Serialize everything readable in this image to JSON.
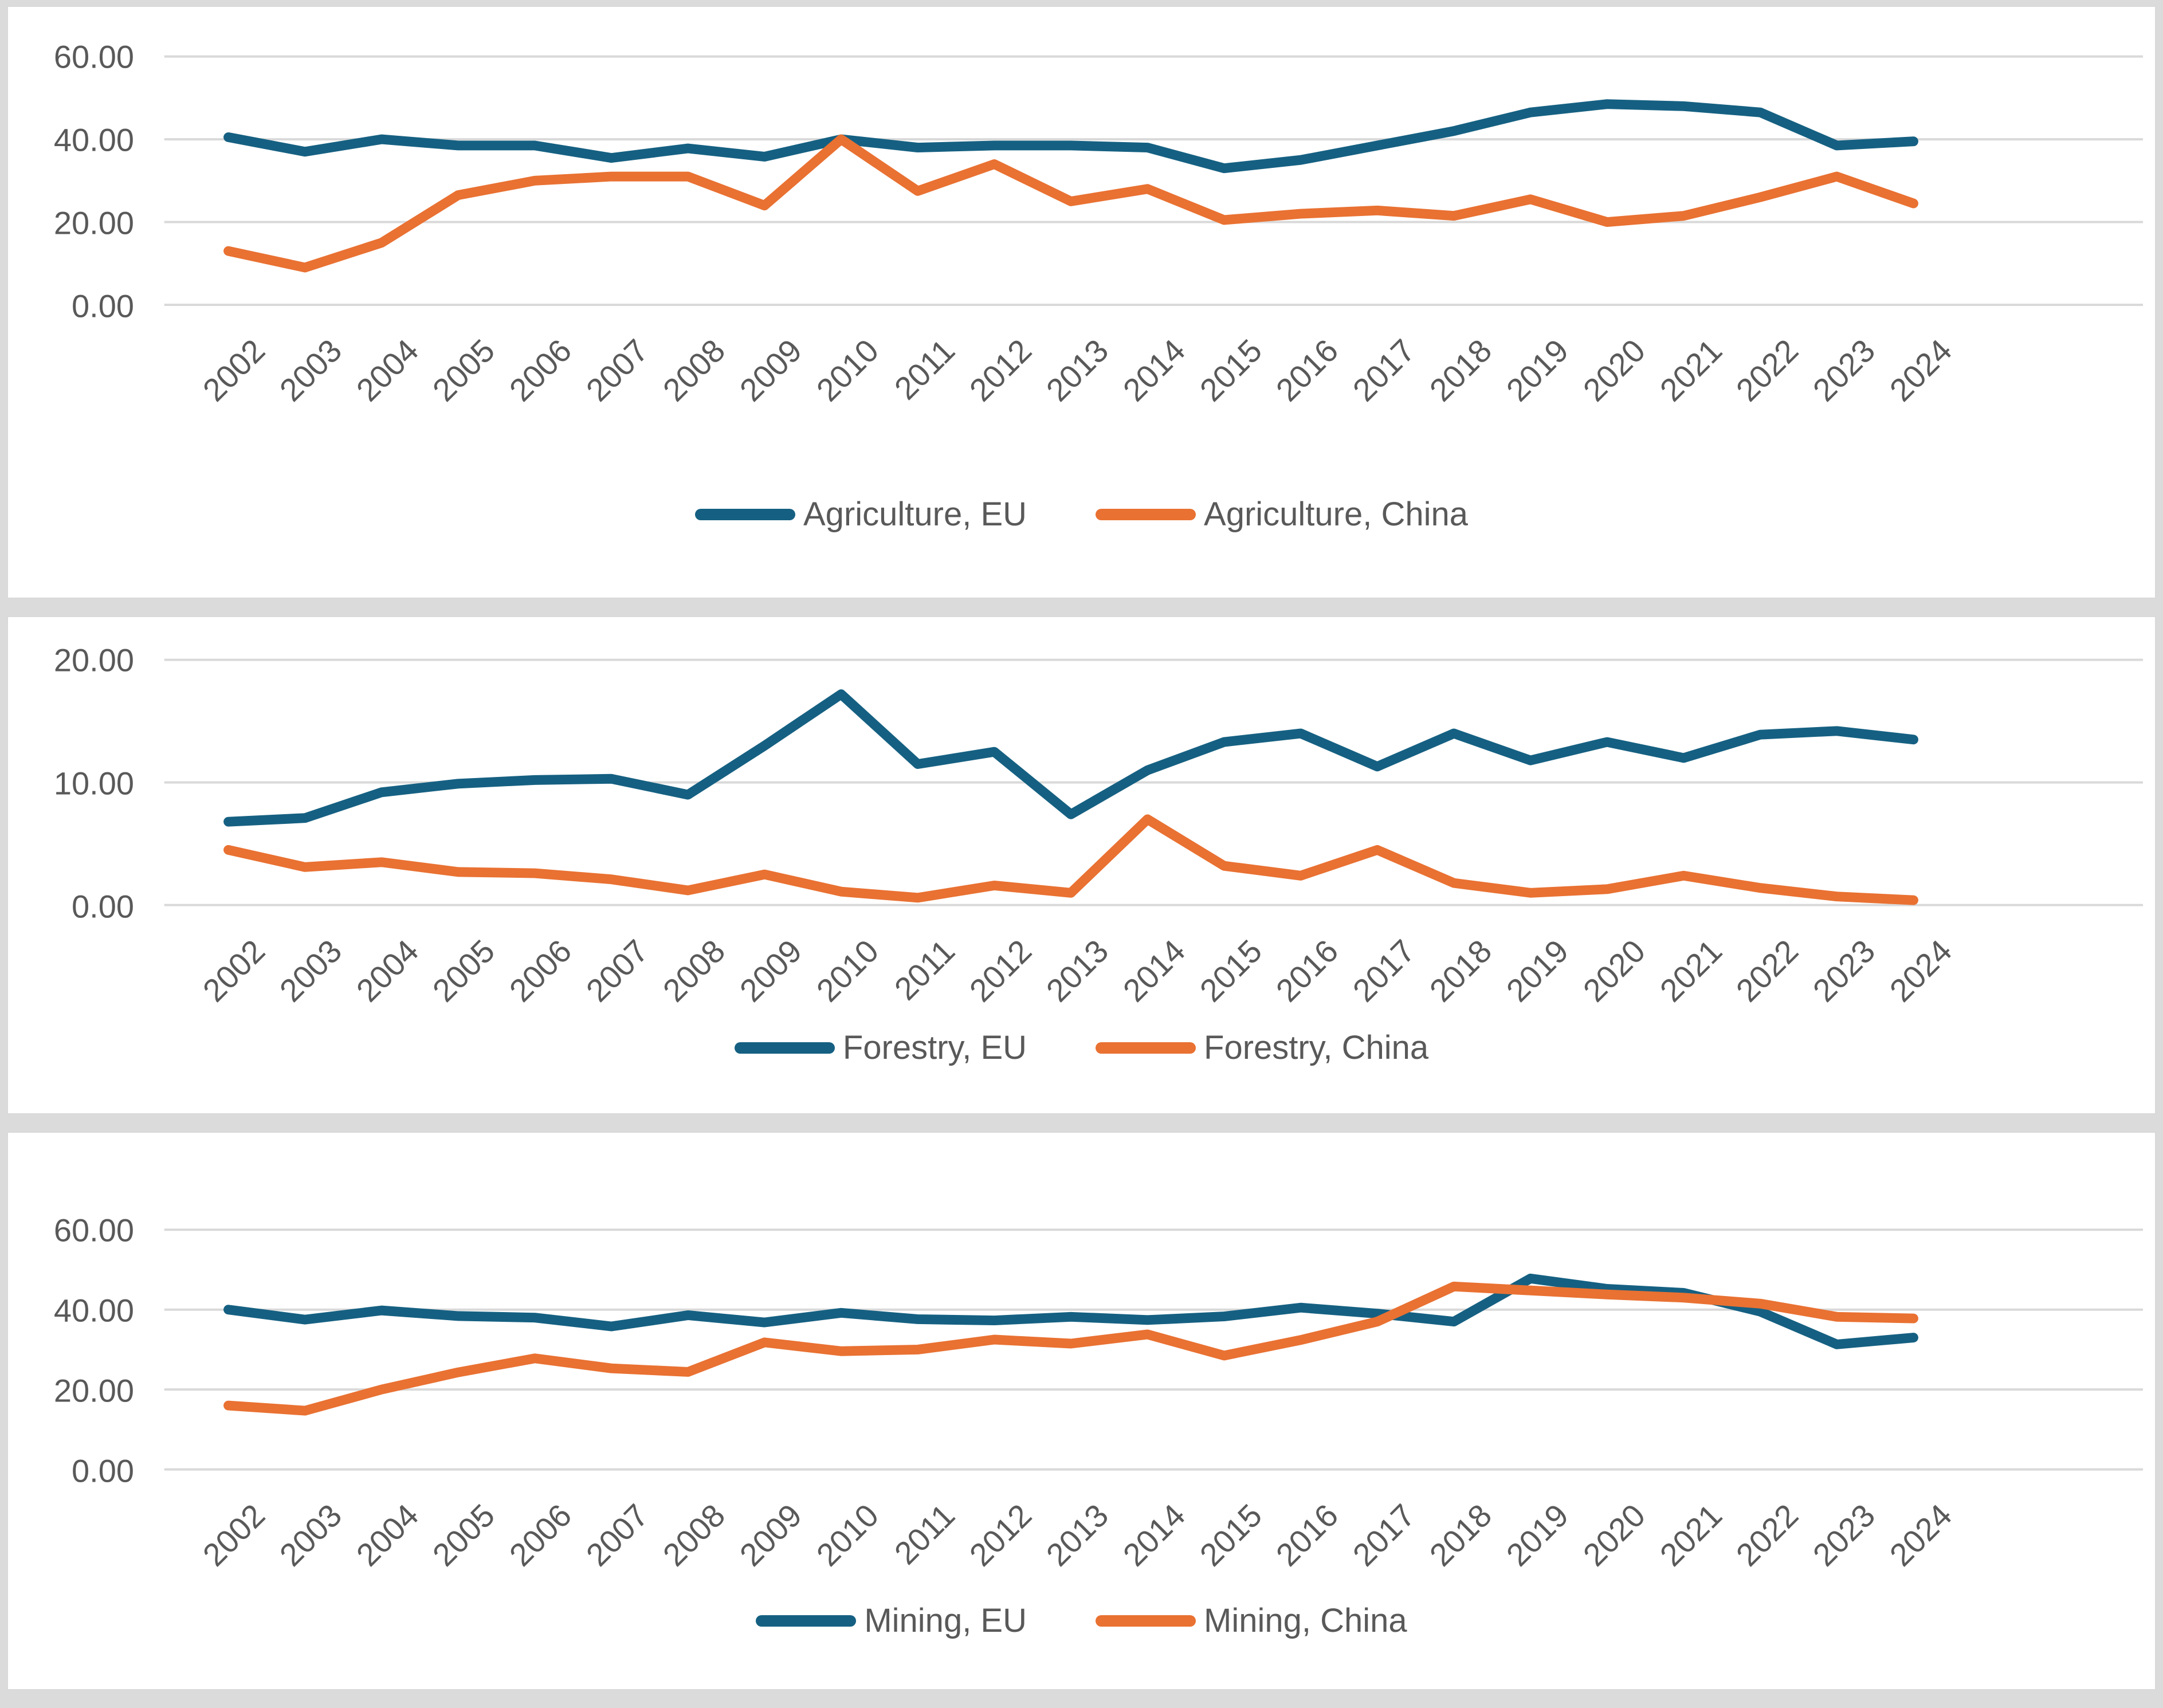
{
  "colors": {
    "eu_line": "#156082",
    "china_line": "#e97132",
    "gridline": "#d9d9d9",
    "axis_text": "#595959",
    "panel_background": "#ffffff",
    "page_background": "#dbdbdb"
  },
  "chart_data": [
    {
      "type": "line",
      "title": "",
      "xlabel": "",
      "ylabel": "",
      "grid": true,
      "legend_position": "bottom",
      "ylim": [
        0,
        60
      ],
      "yticks": [
        "60.00",
        "40.00",
        "20.00",
        "0.00"
      ],
      "categories": [
        "2002",
        "2003",
        "2004",
        "2005",
        "2006",
        "2007",
        "2008",
        "2009",
        "2010",
        "2011",
        "2012",
        "2013",
        "2014",
        "2015",
        "2016",
        "2017",
        "2018",
        "2019",
        "2020",
        "2021",
        "2022",
        "2023",
        "2024"
      ],
      "series": [
        {
          "name": "Agriculture, EU",
          "color": "#156082",
          "values": [
            40.5,
            37.0,
            40.0,
            38.5,
            38.5,
            35.5,
            37.8,
            35.8,
            40.0,
            38.0,
            38.5,
            38.5,
            38.0,
            33.0,
            35.0,
            38.5,
            42.0,
            46.5,
            48.5,
            48.0,
            46.5,
            38.5,
            39.5
          ]
        },
        {
          "name": "Agriculture, China",
          "color": "#e97132",
          "values": [
            13.0,
            9.0,
            15.0,
            26.5,
            30.0,
            31.0,
            31.0,
            24.0,
            40.0,
            27.5,
            34.0,
            25.0,
            28.0,
            20.5,
            22.0,
            22.8,
            21.5,
            25.5,
            20.0,
            21.5,
            26.0,
            31.0,
            24.5
          ]
        }
      ]
    },
    {
      "type": "line",
      "title": "",
      "xlabel": "",
      "ylabel": "",
      "grid": true,
      "legend_position": "bottom",
      "ylim": [
        0,
        20
      ],
      "yticks": [
        "20.00",
        "10.00",
        "0.00"
      ],
      "categories": [
        "2002",
        "2003",
        "2004",
        "2005",
        "2006",
        "2007",
        "2008",
        "2009",
        "2010",
        "2011",
        "2012",
        "2013",
        "2014",
        "2015",
        "2016",
        "2017",
        "2018",
        "2019",
        "2020",
        "2021",
        "2022",
        "2023",
        "2024"
      ],
      "series": [
        {
          "name": "Forestry, EU",
          "color": "#156082",
          "values": [
            6.8,
            7.1,
            9.2,
            9.9,
            10.2,
            10.3,
            9.0,
            13.0,
            17.2,
            11.5,
            12.5,
            7.4,
            11.0,
            13.3,
            14.0,
            11.3,
            14.0,
            11.8,
            13.3,
            12.0,
            13.9,
            14.2,
            13.5
          ]
        },
        {
          "name": "Forestry, China",
          "color": "#e97132",
          "values": [
            4.5,
            3.1,
            3.5,
            2.7,
            2.6,
            2.1,
            1.2,
            2.5,
            1.1,
            0.6,
            1.6,
            1.0,
            7.0,
            3.2,
            2.4,
            4.5,
            1.8,
            1.0,
            1.3,
            2.4,
            1.4,
            0.7,
            0.4
          ]
        }
      ]
    },
    {
      "type": "line",
      "title": "",
      "xlabel": "",
      "ylabel": "",
      "grid": true,
      "legend_position": "bottom",
      "ylim": [
        0,
        60
      ],
      "yticks": [
        "60.00",
        "40.00",
        "20.00",
        "0.00"
      ],
      "categories": [
        "2002",
        "2003",
        "2004",
        "2005",
        "2006",
        "2007",
        "2008",
        "2009",
        "2010",
        "2011",
        "2012",
        "2013",
        "2014",
        "2015",
        "2016",
        "2017",
        "2018",
        "2019",
        "2020",
        "2021",
        "2022",
        "2023",
        "2024"
      ],
      "series": [
        {
          "name": "Mining, EU",
          "color": "#156082",
          "values": [
            40.0,
            37.5,
            39.8,
            38.4,
            38.0,
            35.8,
            38.6,
            36.8,
            39.2,
            37.6,
            37.3,
            38.2,
            37.4,
            38.3,
            40.5,
            39.0,
            37.0,
            47.8,
            45.2,
            44.2,
            39.5,
            31.3,
            33.0
          ]
        },
        {
          "name": "Mining, China",
          "color": "#e97132",
          "values": [
            16.0,
            14.7,
            20.0,
            24.3,
            27.8,
            25.3,
            24.4,
            31.8,
            29.6,
            30.0,
            32.5,
            31.5,
            33.8,
            28.5,
            32.4,
            37.0,
            45.8,
            44.8,
            43.8,
            43.0,
            41.5,
            38.2,
            37.8
          ]
        }
      ]
    }
  ]
}
